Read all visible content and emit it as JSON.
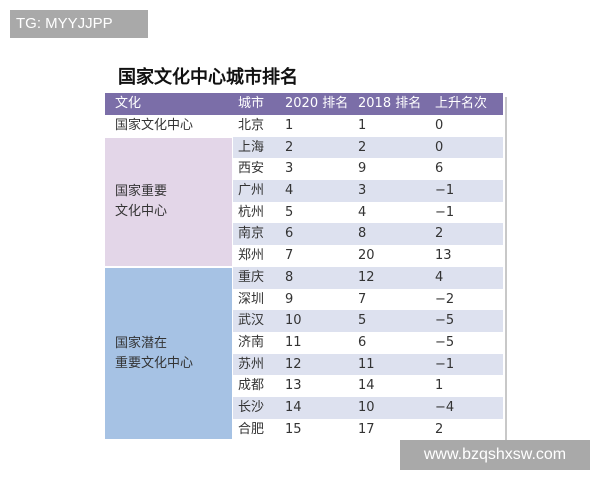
{
  "watermarks": {
    "top_left": "TG: MYYJJPP",
    "bottom_right": "www.bzqshxsw.com"
  },
  "title": "国家文化中心城市排名",
  "colors": {
    "header": "#7b6ea8",
    "important": "#e3d6e8",
    "potential": "#a6c2e4",
    "stripe": "#dde1ef"
  },
  "headers": [
    "文化",
    "城市",
    "2020 排名",
    "2018 排名",
    "上升名次"
  ],
  "categories": [
    {
      "lines": [
        "国家文化中心"
      ]
    },
    {
      "lines": [
        "国家重要",
        "文化中心"
      ]
    },
    {
      "lines": [
        "国家潜在",
        "重要文化中心"
      ]
    }
  ],
  "rows": [
    [
      "北京",
      "1",
      "1",
      "0"
    ],
    [
      "上海",
      "2",
      "2",
      "0"
    ],
    [
      "西安",
      "3",
      "9",
      "6"
    ],
    [
      "广州",
      "4",
      "3",
      "−1"
    ],
    [
      "杭州",
      "5",
      "4",
      "−1"
    ],
    [
      "南京",
      "6",
      "8",
      "2"
    ],
    [
      "郑州",
      "7",
      "20",
      "13"
    ],
    [
      "重庆",
      "8",
      "12",
      "4"
    ],
    [
      "深圳",
      "9",
      "7",
      "−2"
    ],
    [
      "武汉",
      "10",
      "5",
      "−5"
    ],
    [
      "济南",
      "11",
      "6",
      "−5"
    ],
    [
      "苏州",
      "12",
      "11",
      "−1"
    ],
    [
      "成都",
      "13",
      "14",
      "1"
    ],
    [
      "长沙",
      "14",
      "10",
      "−4"
    ],
    [
      "合肥",
      "15",
      "17",
      "2"
    ]
  ]
}
